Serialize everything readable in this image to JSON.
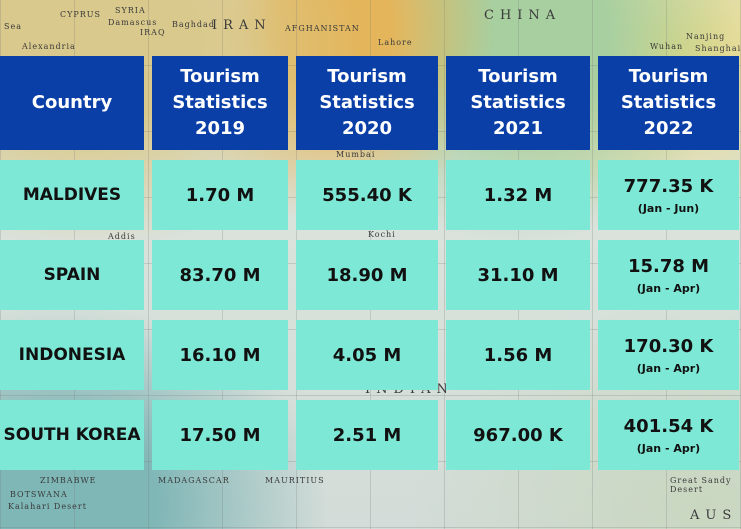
{
  "map_labels": [
    "Sea",
    "CYPRUS",
    "SYRIA",
    "Damascus",
    "IRAQ",
    "Baghdad",
    "IRAN",
    "Alexandria",
    "AFGHANISTAN",
    "Lahore",
    "CHINA",
    "Wuhan",
    "Shanghai",
    "Nanjing",
    "Mumbai",
    "Kochi",
    "Addis",
    "MADAGASCAR",
    "MAURITIUS",
    "ZIMBABWE",
    "BOTSWANA",
    "Kalahari Desert",
    "AUS",
    "Great Sandy Desert",
    "INDIAN"
  ],
  "table": {
    "headers": [
      "Country",
      "Tourism Statistics 2019",
      "Tourism Statistics 2020",
      "Tourism Statistics 2021",
      "Tourism Statistics 2022"
    ],
    "header_lines": [
      [
        "Country"
      ],
      [
        "Tourism",
        "Statistics",
        "2019"
      ],
      [
        "Tourism",
        "Statistics",
        "2020"
      ],
      [
        "Tourism",
        "Statistics",
        "2021"
      ],
      [
        "Tourism",
        "Statistics",
        "2022"
      ]
    ],
    "rows": [
      {
        "country": "MALDIVES",
        "y2019": "1.70 M",
        "y2020": "555.40 K",
        "y2021": "1.32 M",
        "y2022": "777.35 K",
        "y2022_note": "(Jan - Jun)"
      },
      {
        "country": "SPAIN",
        "y2019": "83.70 M",
        "y2020": "18.90 M",
        "y2021": "31.10 M",
        "y2022": "15.78 M",
        "y2022_note": "(Jan - Apr)"
      },
      {
        "country": "INDONESIA",
        "y2019": "16.10 M",
        "y2020": "4.05 M",
        "y2021": "1.56 M",
        "y2022": "170.30 K",
        "y2022_note": "(Jan - Apr)"
      },
      {
        "country": "SOUTH KOREA",
        "y2019": "17.50 M",
        "y2020": "2.51 M",
        "y2021": "967.00 K",
        "y2022": "401.54 K",
        "y2022_note": "(Jan - Apr)"
      }
    ]
  },
  "colors": {
    "header_bg": "#0a3fa8",
    "header_text": "#ffffff",
    "row_bg": "#7ee8d6",
    "row_text": "#111111"
  }
}
